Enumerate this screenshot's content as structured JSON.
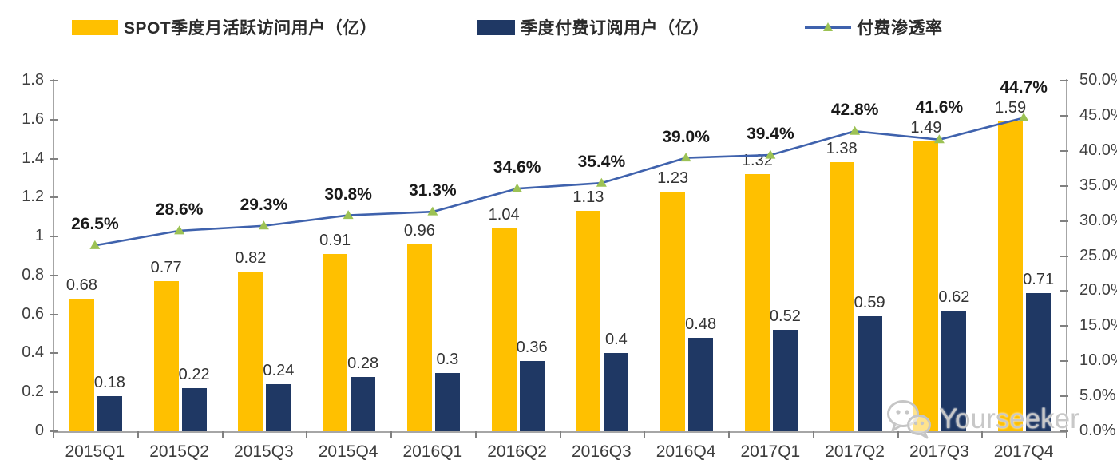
{
  "legend": {
    "items": [
      {
        "label": "SPOT季度月活跃访问用户（亿）",
        "swatch": "bar",
        "color": "#FFC000"
      },
      {
        "label": "季度付费订阅用户（亿）",
        "swatch": "bar",
        "color": "#1F3864"
      },
      {
        "label": "付费渗透率",
        "swatch": "line-marker",
        "color": "#3f62ad",
        "marker_color": "#9cc254"
      }
    ]
  },
  "chart_data": {
    "type": "bar",
    "subtype": "combo-bar-line-dual-axis",
    "title": "",
    "grid": false,
    "legend_position": "top",
    "categories": [
      "2015Q1",
      "2015Q2",
      "2015Q3",
      "2015Q4",
      "2016Q1",
      "2016Q2",
      "2016Q3",
      "2016Q4",
      "2017Q1",
      "2017Q2",
      "2017Q3",
      "2017Q4"
    ],
    "series": [
      {
        "name": "SPOT季度月活跃访问用户（亿）",
        "type": "bar",
        "axis": "left",
        "color": "#FFC000",
        "values": [
          0.68,
          0.77,
          0.82,
          0.91,
          0.96,
          1.04,
          1.13,
          1.23,
          1.32,
          1.38,
          1.49,
          1.59
        ],
        "labels": [
          "0.68",
          "0.77",
          "0.82",
          "0.91",
          "0.96",
          "1.04",
          "1.13",
          "1.23",
          "1.32",
          "1.38",
          "1.49",
          "1.59"
        ]
      },
      {
        "name": "季度付费订阅用户（亿）",
        "type": "bar",
        "axis": "left",
        "color": "#1F3864",
        "values": [
          0.18,
          0.22,
          0.24,
          0.28,
          0.3,
          0.36,
          0.4,
          0.48,
          0.52,
          0.59,
          0.62,
          0.71
        ],
        "labels": [
          "0.18",
          "0.22",
          "0.24",
          "0.28",
          "0.3",
          "0.36",
          "0.4",
          "0.48",
          "0.52",
          "0.59",
          "0.62",
          "0.71"
        ]
      },
      {
        "name": "付费渗透率",
        "type": "line",
        "axis": "right",
        "color": "#3f62ad",
        "marker": "triangle",
        "marker_color": "#9cc254",
        "values": [
          26.5,
          28.6,
          29.3,
          30.8,
          31.3,
          34.6,
          35.4,
          39.0,
          39.4,
          42.8,
          41.6,
          44.7
        ],
        "labels": [
          "26.5%",
          "28.6%",
          "29.3%",
          "30.8%",
          "31.3%",
          "34.6%",
          "35.4%",
          "39.0%",
          "39.4%",
          "42.8%",
          "41.6%",
          "44.7%"
        ]
      }
    ],
    "left_axis": {
      "min": 0,
      "max": 1.8,
      "tick_values": [
        0,
        0.2,
        0.4,
        0.6,
        0.8,
        1,
        1.2,
        1.4,
        1.6,
        1.8
      ],
      "tick_labels": [
        "0",
        "0.2",
        "0.4",
        "0.6",
        "0.8",
        "1",
        "1.2",
        "1.4",
        "1.6",
        "1.8"
      ]
    },
    "right_axis": {
      "min": 0,
      "max": 50,
      "tick_values": [
        0,
        5,
        10,
        15,
        20,
        25,
        30,
        35,
        40,
        45,
        50
      ],
      "tick_labels": [
        "0.0%",
        "5.0%",
        "10.0%",
        "15.0%",
        "20.0%",
        "25.0%",
        "30.0%",
        "35.0%",
        "40.0%",
        "45.0%",
        "50.0%"
      ]
    }
  },
  "watermark": {
    "text": "Yourseeker",
    "icon": "wechat-icon",
    "color": "#c8c8c8"
  }
}
